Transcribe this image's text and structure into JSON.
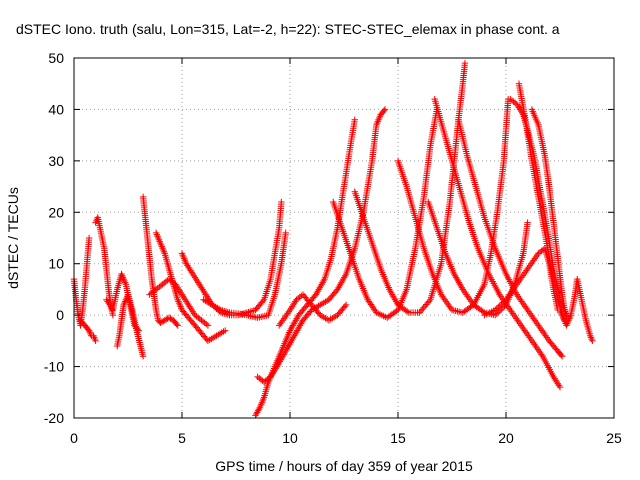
{
  "chart_data": {
    "type": "scatter",
    "title": "dSTEC Iono. truth (salu, Lon=315, Lat=-2, h=22): STEC-STEC_elemax in phase cont. a",
    "xlabel": "GPS time / hours of day 359 of year 2015",
    "ylabel": "dSTEC  / TECUs",
    "xlim": [
      0,
      25
    ],
    "ylim": [
      -20,
      50
    ],
    "xticks": [
      0,
      5,
      10,
      15,
      20,
      25
    ],
    "yticks": [
      -20,
      -10,
      0,
      10,
      20,
      30,
      40,
      50
    ],
    "grid": true,
    "marker": "+",
    "color": "#ff0000",
    "arcs": [
      {
        "points": [
          [
            0.0,
            7
          ],
          [
            0.1,
            3
          ],
          [
            0.2,
            0
          ],
          [
            0.3,
            -2
          ],
          [
            0.4,
            1
          ],
          [
            0.5,
            5
          ],
          [
            0.6,
            10
          ],
          [
            0.7,
            15
          ]
        ]
      },
      {
        "points": [
          [
            0.3,
            -1
          ],
          [
            0.5,
            -2
          ],
          [
            0.7,
            -3
          ],
          [
            0.8,
            -4
          ],
          [
            0.9,
            -4
          ],
          [
            1.0,
            -5
          ]
        ]
      },
      {
        "points": [
          [
            1.0,
            18
          ],
          [
            1.1,
            19
          ],
          [
            1.2,
            17
          ],
          [
            1.3,
            15
          ],
          [
            1.4,
            13
          ],
          [
            1.5,
            9
          ],
          [
            1.6,
            5
          ],
          [
            1.7,
            2
          ],
          [
            1.8,
            0
          ]
        ]
      },
      {
        "points": [
          [
            1.5,
            3
          ],
          [
            1.8,
            1
          ],
          [
            2.0,
            5
          ],
          [
            2.2,
            8
          ],
          [
            2.4,
            6
          ],
          [
            2.6,
            2
          ],
          [
            2.8,
            -2
          ],
          [
            3.0,
            -3
          ]
        ]
      },
      {
        "points": [
          [
            2.0,
            -6
          ],
          [
            2.1,
            -4
          ],
          [
            2.2,
            -1
          ],
          [
            2.3,
            2
          ],
          [
            2.5,
            4
          ],
          [
            2.7,
            1
          ],
          [
            2.9,
            -3
          ],
          [
            3.2,
            -8
          ]
        ]
      },
      {
        "points": [
          [
            3.2,
            23
          ],
          [
            3.3,
            19
          ],
          [
            3.4,
            15
          ],
          [
            3.5,
            11
          ],
          [
            3.6,
            7
          ],
          [
            3.7,
            4
          ],
          [
            3.8,
            1
          ],
          [
            3.9,
            -1
          ],
          [
            4.0,
            -1.5
          ],
          [
            4.2,
            -1
          ],
          [
            4.4,
            -0.5
          ],
          [
            4.6,
            -1
          ],
          [
            4.8,
            -2
          ]
        ]
      },
      {
        "points": [
          [
            3.8,
            16
          ],
          [
            4.0,
            14
          ],
          [
            4.2,
            12
          ],
          [
            4.4,
            9
          ],
          [
            4.6,
            6
          ],
          [
            4.8,
            3
          ],
          [
            5.0,
            1
          ],
          [
            5.4,
            -1
          ],
          [
            5.8,
            -3
          ],
          [
            6.2,
            -5
          ],
          [
            6.6,
            -4
          ],
          [
            7.0,
            -3
          ]
        ]
      },
      {
        "points": [
          [
            3.5,
            4
          ],
          [
            3.8,
            5
          ],
          [
            4.1,
            6
          ],
          [
            4.4,
            7
          ],
          [
            4.7,
            6
          ],
          [
            5.0,
            4
          ],
          [
            5.3,
            2
          ],
          [
            5.6,
            0
          ],
          [
            5.9,
            -1
          ],
          [
            6.2,
            -2
          ]
        ]
      },
      {
        "points": [
          [
            5.0,
            12
          ],
          [
            5.2,
            10
          ],
          [
            5.5,
            8
          ],
          [
            5.8,
            6
          ],
          [
            6.1,
            4
          ],
          [
            6.4,
            2
          ],
          [
            6.8,
            0.5
          ],
          [
            7.2,
            0
          ],
          [
            7.6,
            0
          ],
          [
            8.0,
            0.5
          ],
          [
            8.4,
            1
          ],
          [
            8.8,
            3
          ],
          [
            9.1,
            7
          ],
          [
            9.3,
            12
          ],
          [
            9.5,
            17
          ],
          [
            9.6,
            22
          ]
        ]
      },
      {
        "points": [
          [
            6.0,
            3
          ],
          [
            6.4,
            2
          ],
          [
            6.8,
            1
          ],
          [
            7.2,
            0.5
          ],
          [
            7.6,
            0.3
          ],
          [
            8.0,
            0
          ],
          [
            8.5,
            -0.5
          ],
          [
            9.0,
            0
          ],
          [
            9.3,
            4
          ],
          [
            9.6,
            10
          ],
          [
            9.8,
            16
          ]
        ]
      },
      {
        "points": [
          [
            8.4,
            -19.5
          ],
          [
            8.6,
            -18
          ],
          [
            8.8,
            -16
          ],
          [
            9.0,
            -13
          ],
          [
            9.3,
            -10
          ],
          [
            9.6,
            -7
          ],
          [
            10.0,
            -3
          ],
          [
            10.4,
            0
          ],
          [
            10.8,
            2
          ],
          [
            11.2,
            4
          ],
          [
            11.6,
            7
          ],
          [
            11.9,
            11
          ],
          [
            12.2,
            17
          ],
          [
            12.5,
            25
          ],
          [
            12.8,
            33
          ],
          [
            13.0,
            38
          ]
        ]
      },
      {
        "points": [
          [
            8.5,
            -12
          ],
          [
            8.8,
            -13
          ],
          [
            9.1,
            -12
          ],
          [
            9.4,
            -10
          ],
          [
            9.8,
            -7
          ],
          [
            10.2,
            -4
          ],
          [
            10.6,
            -1
          ],
          [
            11.0,
            1
          ],
          [
            11.4,
            2
          ],
          [
            11.8,
            3
          ],
          [
            12.2,
            5
          ],
          [
            12.6,
            8
          ],
          [
            13.0,
            13
          ],
          [
            13.4,
            20
          ],
          [
            13.8,
            30
          ],
          [
            14.0,
            37
          ],
          [
            14.2,
            39
          ],
          [
            14.4,
            40
          ]
        ]
      },
      {
        "points": [
          [
            9.5,
            -2
          ],
          [
            10.0,
            1
          ],
          [
            10.3,
            3
          ],
          [
            10.6,
            4
          ],
          [
            11.0,
            2
          ],
          [
            11.4,
            0
          ],
          [
            11.8,
            -1
          ],
          [
            12.2,
            0
          ],
          [
            12.6,
            2
          ]
        ]
      },
      {
        "points": [
          [
            12.0,
            22
          ],
          [
            12.4,
            17
          ],
          [
            12.8,
            12
          ],
          [
            13.2,
            7
          ],
          [
            13.6,
            3
          ],
          [
            14.0,
            0.5
          ],
          [
            14.5,
            -0.5
          ],
          [
            15.0,
            1
          ],
          [
            15.4,
            5
          ],
          [
            15.8,
            13
          ],
          [
            16.2,
            23
          ],
          [
            16.5,
            33
          ],
          [
            16.8,
            40
          ]
        ]
      },
      {
        "points": [
          [
            13.0,
            24
          ],
          [
            13.4,
            19
          ],
          [
            13.8,
            14
          ],
          [
            14.2,
            9
          ],
          [
            14.6,
            5
          ],
          [
            15.0,
            2
          ],
          [
            15.5,
            0.5
          ],
          [
            16.0,
            0.5
          ],
          [
            16.5,
            3
          ],
          [
            17.0,
            10
          ],
          [
            17.4,
            22
          ],
          [
            17.8,
            38
          ],
          [
            18.0,
            45
          ],
          [
            18.1,
            49
          ]
        ]
      },
      {
        "points": [
          [
            15.0,
            30
          ],
          [
            15.4,
            25
          ],
          [
            15.8,
            19
          ],
          [
            16.2,
            13
          ],
          [
            16.6,
            8
          ],
          [
            17.0,
            4
          ],
          [
            17.5,
            1
          ],
          [
            18.0,
            0.5
          ],
          [
            18.5,
            2
          ],
          [
            19.0,
            6
          ],
          [
            19.3,
            12
          ],
          [
            19.6,
            20
          ],
          [
            19.9,
            30
          ],
          [
            20.1,
            42
          ]
        ]
      },
      {
        "points": [
          [
            16.4,
            22
          ],
          [
            16.8,
            17
          ],
          [
            17.2,
            12
          ],
          [
            17.6,
            8
          ],
          [
            18.0,
            5
          ],
          [
            18.5,
            2
          ],
          [
            19.0,
            0.5
          ],
          [
            19.5,
            0
          ],
          [
            20.0,
            2
          ],
          [
            20.4,
            6
          ],
          [
            20.8,
            12
          ],
          [
            21.0,
            18
          ]
        ]
      },
      {
        "points": [
          [
            16.7,
            42
          ],
          [
            17.1,
            36
          ],
          [
            17.5,
            30
          ],
          [
            17.9,
            24
          ],
          [
            18.3,
            18
          ],
          [
            18.7,
            13
          ],
          [
            19.2,
            8
          ],
          [
            19.7,
            4
          ],
          [
            20.2,
            1
          ],
          [
            20.7,
            -2
          ],
          [
            21.2,
            -5
          ],
          [
            21.7,
            -8
          ],
          [
            22.2,
            -12
          ],
          [
            22.5,
            -14
          ]
        ]
      },
      {
        "points": [
          [
            17.8,
            38
          ],
          [
            18.2,
            31
          ],
          [
            18.6,
            25
          ],
          [
            19.0,
            19
          ],
          [
            19.5,
            13
          ],
          [
            20.0,
            8
          ],
          [
            20.5,
            4
          ],
          [
            21.0,
            1
          ],
          [
            21.5,
            -2
          ],
          [
            22.0,
            -5
          ],
          [
            22.4,
            -7
          ],
          [
            22.6,
            -8
          ]
        ]
      },
      {
        "points": [
          [
            19.0,
            0
          ],
          [
            19.5,
            1
          ],
          [
            20.0,
            3
          ],
          [
            20.5,
            6
          ],
          [
            21.0,
            9
          ],
          [
            21.5,
            12
          ],
          [
            21.8,
            13
          ],
          [
            22.0,
            10
          ],
          [
            22.2,
            5
          ],
          [
            22.4,
            1
          ]
        ]
      },
      {
        "points": [
          [
            20.2,
            42
          ],
          [
            20.5,
            41
          ],
          [
            20.8,
            39
          ],
          [
            21.0,
            36
          ],
          [
            21.3,
            31
          ],
          [
            21.6,
            24
          ],
          [
            21.9,
            17
          ],
          [
            22.2,
            9
          ],
          [
            22.5,
            3
          ],
          [
            22.8,
            0
          ]
        ]
      },
      {
        "points": [
          [
            20.6,
            45
          ],
          [
            20.9,
            38
          ],
          [
            21.2,
            30
          ],
          [
            21.5,
            23
          ],
          [
            21.8,
            16
          ],
          [
            22.1,
            9
          ],
          [
            22.4,
            3
          ],
          [
            22.7,
            -1
          ]
        ]
      },
      {
        "points": [
          [
            21.2,
            40
          ],
          [
            21.5,
            37
          ],
          [
            21.8,
            31
          ],
          [
            22.0,
            25
          ],
          [
            22.2,
            18
          ],
          [
            22.4,
            11
          ],
          [
            22.6,
            4
          ],
          [
            22.8,
            -1
          ]
        ]
      },
      {
        "points": [
          [
            22.5,
            1
          ],
          [
            22.8,
            -2
          ],
          [
            23.0,
            0
          ],
          [
            23.2,
            4
          ],
          [
            23.3,
            7
          ],
          [
            23.5,
            3
          ],
          [
            23.7,
            -1
          ],
          [
            23.9,
            -4
          ],
          [
            24.0,
            -5
          ]
        ]
      }
    ]
  }
}
